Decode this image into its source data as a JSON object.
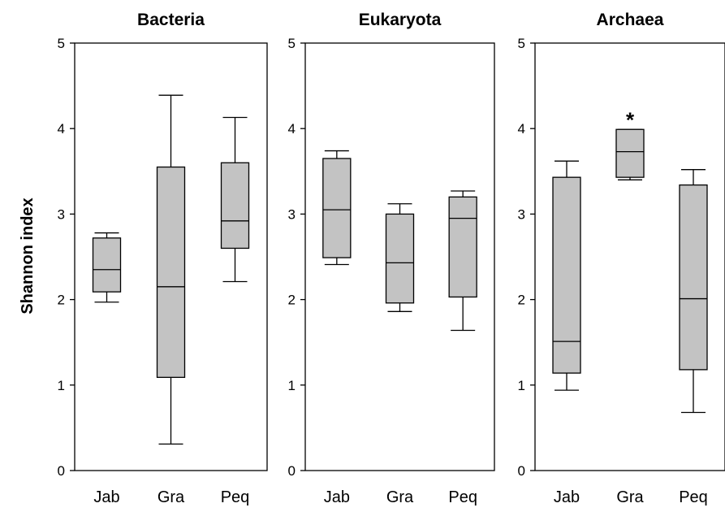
{
  "chart_data": {
    "type": "box",
    "ylabel": "Shannon index",
    "ylim": [
      0,
      5
    ],
    "yticks": [
      0,
      1,
      2,
      3,
      4,
      5
    ],
    "panels": [
      {
        "title": "Bacteria",
        "categories": [
          "Jab",
          "Gra",
          "Peq"
        ],
        "boxes": [
          {
            "category": "Jab",
            "min": 1.97,
            "q1": 2.09,
            "median": 2.35,
            "q3": 2.72,
            "max": 2.78
          },
          {
            "category": "Gra",
            "min": 0.31,
            "q1": 1.09,
            "median": 2.15,
            "q3": 3.55,
            "max": 4.39
          },
          {
            "category": "Peq",
            "min": 2.21,
            "q1": 2.6,
            "median": 2.92,
            "q3": 3.6,
            "max": 4.13
          }
        ],
        "annotations": []
      },
      {
        "title": "Eukaryota",
        "categories": [
          "Jab",
          "Gra",
          "Peq"
        ],
        "boxes": [
          {
            "category": "Jab",
            "min": 2.41,
            "q1": 2.49,
            "median": 3.05,
            "q3": 3.65,
            "max": 3.74
          },
          {
            "category": "Gra",
            "min": 1.86,
            "q1": 1.96,
            "median": 2.43,
            "q3": 3.0,
            "max": 3.12
          },
          {
            "category": "Peq",
            "min": 1.64,
            "q1": 2.03,
            "median": 2.95,
            "q3": 3.2,
            "max": 3.27
          }
        ],
        "annotations": []
      },
      {
        "title": "Archaea",
        "categories": [
          "Jab",
          "Gra",
          "Peq"
        ],
        "boxes": [
          {
            "category": "Jab",
            "min": 0.94,
            "q1": 1.14,
            "median": 1.51,
            "q3": 3.43,
            "max": 3.62
          },
          {
            "category": "Gra",
            "min": 3.4,
            "q1": 3.43,
            "median": 3.73,
            "q3": 3.99,
            "max": 3.99
          },
          {
            "category": "Peq",
            "min": 0.68,
            "q1": 1.18,
            "median": 2.01,
            "q3": 3.34,
            "max": 3.52
          }
        ],
        "annotations": [
          {
            "category": "Gra",
            "text": "*"
          }
        ]
      }
    ]
  }
}
